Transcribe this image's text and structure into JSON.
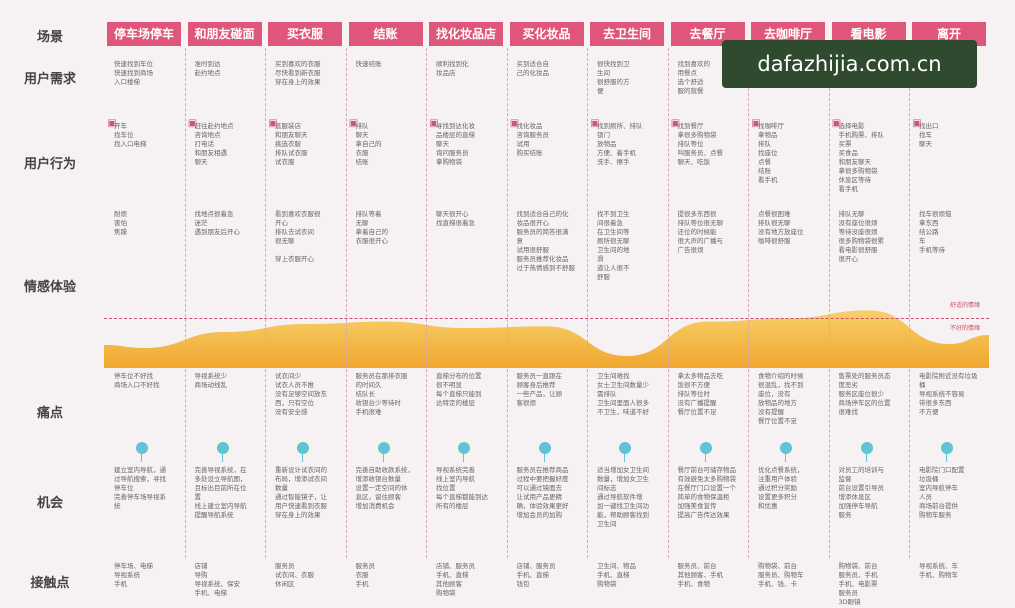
{
  "row_labels": [
    "场景",
    "用户需求",
    "用户行为",
    "情感体验",
    "痛点",
    "机会",
    "接触点"
  ],
  "scenes": [
    "停车场停车",
    "和朋友碰面",
    "买衣服",
    "结账",
    "找化妆品店",
    "买化妆品",
    "去卫生间",
    "去餐厅",
    "去咖啡厅",
    "看电影",
    "离开"
  ],
  "needs": [
    "快速找到车位\n快速找到商场\n入口楼梯",
    "准时到达\n赴约地点",
    "买到喜欢的衣服\n尽快看到新衣服\n穿在身上的效果",
    "快速结账",
    "顺利找到化\n妆品店",
    "买到适合自\n己的化妆品",
    "很快找到卫\n生间\n很舒服的方\n便",
    "找到喜欢的\n用餐点\n选个舒适\n服的就餐",
    "",
    "",
    ""
  ],
  "actions": [
    "开车\n找车位\n找入口电梯",
    "赶往赴约地点\n咨询地点\n打电话\n和朋友相遇\n聊天",
    "逛服装店\n和朋友聊天\n挑选衣服\n排队试衣服\n试衣服",
    "排队\n聊天\n拿自己的\n衣服\n结账",
    "寻找到达化妆\n品楼层的直梯\n聊天\n询问服务员\n拿购物袋",
    "找化妆品\n咨询服务员\n试用\n购买结账",
    "找到厕所、排队\n锁门\n放物品\n方便、着手机\n洗手、擦手",
    "找到餐厅\n拿很多购物袋\n排队等位\n叫服务员、点餐\n聊天、吃饭",
    "找咖啡厅\n拿物品\n排队\n找座位\n点餐\n结账\n看手机",
    "选择电影\n手机购票、排队\n买票\n买食品\n和朋友聊天\n拿很多购物袋\n休息区等待\n看手机",
    "找出口\n找车\n聊天"
  ],
  "emotions": [
    "耐烦\n害怕\n焦躁",
    "找地点很着急\n迷茫\n遇到朋友后开心",
    "看到喜欢衣服很\n开心\n排队去试衣间\n很无聊\n\n穿上衣服开心",
    "排队等着\n无聊\n拿着自己的\n衣服很开心",
    "聊天很开心\n找直梯很着急",
    "找到适合自己的化\n妆品很开心\n服务员的简答很满\n意\n试用很舒服\n服务员推荐化妆品\n过于热情感到不舒服",
    "找不到卫生\n间很着急\n在卫生间等\n厕所很无聊\n卫生间的地\n滑\n道让人很不\n舒服",
    "提很多东西很\n排队等位很无聊\n还位的时候能\n很大声的广播与\n广告很烦",
    "点餐很困难\n排队很无聊\n没有地方放座位\n咖啡很舒服",
    "排队无聊\n没有座位很烦\n等待没座很烦\n很多购物袋很累\n看电影很舒服\n很开心",
    "找车很烦恼\n拿东西\n结公路\n车\n手机等待"
  ],
  "emotion_levels": [
    0.25,
    0.45,
    0.55,
    0.58,
    0.5,
    0.52,
    0.15,
    0.58,
    0.62,
    0.72,
    0.3
  ],
  "ref_labels": [
    "舒适的情绪",
    "不好的情绪"
  ],
  "pains": [
    "停车位不好找\n商场入口不好找",
    "导视系统少\n商场动线乱",
    "试衣间少\n试衣人员不推\n没有足够空间放东\n西，只有空位\n没有安全感",
    "服务员在那排衣服\n的时间久\n结队长\n收银台少等待时\n手机很难",
    "直梯分布的位置\n很不明显\n每个直梯只能到\n达特定的楼层",
    "服务员一直跟在\n顾客身后推荐\n一些产品，让顾\n客很烦",
    "卫生间难找\n女士卫生间数量少\n需排队\n卫生间里面人很多\n不卫生，味道不好",
    "拿太多物品去吃\n饭很不方便\n排队等位时\n没有广播提醒\n餐厅位置不足",
    "食物介绍的时候\n很混乱，找不到\n座位，没有\n放物品的地方\n没有提醒\n餐厅位置不足",
    "售票处的服务员态\n度恶劣\n服务区座位很少\n商场停车区的位置\n很难找",
    "电影院附近没有垃圾\n桶\n导视系统不容易\n带很多东西\n不方便"
  ],
  "opps": [
    "建立室内导航，通\n过导航搜索，寻找\n停车位\n完善停车场导视系\n统",
    "完善导视系统，在\n多处设立导航图，\n且标出目前所在位\n置\n线上建立室内导航\n提醒导航系统",
    "重新设计试衣间的\n布局，增添试衣间\n数量\n通过智能镜子，让\n用户快速看到衣服\n穿在身上的效果",
    "完善自助收款系统，\n增添收银台数量\n设置一定空间的休\n息区，留住顾客\n增加消费机会",
    "导视系统完善\n线上室内导航\n找位置\n每个直梯都能到达\n所有的楼层",
    "服务员在推荐商品\n过程中要把握好度\n可以通过镜面去\n让试用产品更精\n确，体验效果更好\n增加会员的加购",
    "适当增加女卫生间\n数量，增加女卫生\n间标志\n通过导航软件增\n加一键找卫生间功\n能，帮助顾客找到\n卫生间",
    "餐厅前台可储存物品\n有效避免太多购物袋\n在餐厅门口设置一个\n简单的食物保温柜\n加强美食宣传\n提高广告传达效果",
    "优化点餐系统，\n注重用户体验\n通过积分奖励\n设置更多积分\n和优惠",
    "对员工的培训与\n监督\n前台设置引导员\n增添休息区\n加强停车导航\n服务",
    "电影院门口配置\n垃圾桶\n室内导航停车\n人员\n商场前台提供\n购物车服务"
  ],
  "touchpoints": [
    "停车场、电梯\n导视系统\n手机",
    "店铺\n导购\n导视系统、保安\n手机、电梯",
    "服务员\n试衣间、衣服\n休闲区",
    "服务员\n衣服\n手机",
    "店铺、服务员\n手机、直梯\n其他顾客\n购物袋",
    "店铺、服务员\n手机、直梯\n钱包",
    "卫生间、物品\n手机、直梯\n购物袋",
    "服务员、前台\n其他顾客、手机\n手机、食物",
    "购物袋、前台\n服务员、购物车\n手机、钱、卡",
    "购物袋、前台\n服务员、手机\n手机、电影票\n服务员\n3D眼镜",
    "导视系统、车\n手机、购物车"
  ],
  "watermark": "dafazhijia.com.cn",
  "colors": {
    "header": "#e0567a",
    "curve": "#f2b33d",
    "curve_top": "#f7c960",
    "pin": "#5fc4d3"
  }
}
